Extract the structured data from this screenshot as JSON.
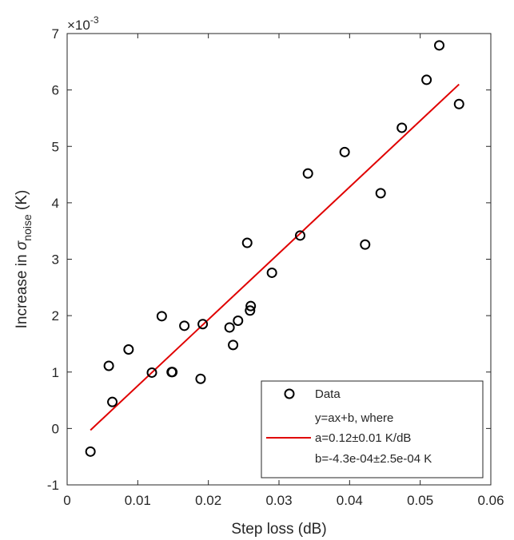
{
  "chart_data": {
    "type": "scatter",
    "xlabel": "Step loss (dB)",
    "ylabel": {
      "prefix": "Increase in ",
      "symbol": "σ",
      "subscript": "noise",
      "suffix": " (K)"
    },
    "y_exponent": {
      "base": "×10",
      "power": "-3"
    },
    "xlim": [
      0,
      0.06
    ],
    "ylim": [
      -1,
      7
    ],
    "x_ticks": [
      "0",
      "0.01",
      "0.02",
      "0.03",
      "0.04",
      "0.05",
      "0.06"
    ],
    "y_ticks": [
      "-1",
      "0",
      "1",
      "2",
      "3",
      "4",
      "5",
      "6",
      "7"
    ],
    "grid": false,
    "legend_position": "bottom-right",
    "series": [
      {
        "name": "Data",
        "marker": "circle",
        "color": "#000000",
        "points": [
          {
            "x": 0.0033,
            "y": -0.41
          },
          {
            "x": 0.0059,
            "y": 1.11
          },
          {
            "x": 0.0064,
            "y": 0.47
          },
          {
            "x": 0.0087,
            "y": 1.4
          },
          {
            "x": 0.012,
            "y": 0.99
          },
          {
            "x": 0.0134,
            "y": 1.99
          },
          {
            "x": 0.0148,
            "y": 1.0
          },
          {
            "x": 0.0149,
            "y": 1.0
          },
          {
            "x": 0.0166,
            "y": 1.82
          },
          {
            "x": 0.0189,
            "y": 0.88
          },
          {
            "x": 0.0192,
            "y": 1.85
          },
          {
            "x": 0.023,
            "y": 1.79
          },
          {
            "x": 0.0235,
            "y": 1.48
          },
          {
            "x": 0.0242,
            "y": 1.91
          },
          {
            "x": 0.0255,
            "y": 3.29
          },
          {
            "x": 0.0259,
            "y": 2.09
          },
          {
            "x": 0.026,
            "y": 2.17
          },
          {
            "x": 0.029,
            "y": 2.76
          },
          {
            "x": 0.033,
            "y": 3.42
          },
          {
            "x": 0.0341,
            "y": 4.52
          },
          {
            "x": 0.0393,
            "y": 4.9
          },
          {
            "x": 0.0422,
            "y": 3.26
          },
          {
            "x": 0.0444,
            "y": 4.17
          },
          {
            "x": 0.0474,
            "y": 5.33
          },
          {
            "x": 0.0509,
            "y": 6.18
          },
          {
            "x": 0.0527,
            "y": 6.79
          },
          {
            "x": 0.0555,
            "y": 5.75
          }
        ]
      },
      {
        "name": "y=ax+b, where",
        "legend_lines": [
          "y=ax+b, where",
          "a=0.12±0.01 K/dB",
          "b=-4.3e-04±2.5e-04 K"
        ],
        "type": "line",
        "color": "#e00000",
        "points": [
          {
            "x": 0.0033,
            "y": -0.03
          },
          {
            "x": 0.0555,
            "y": 6.1
          }
        ]
      }
    ]
  }
}
